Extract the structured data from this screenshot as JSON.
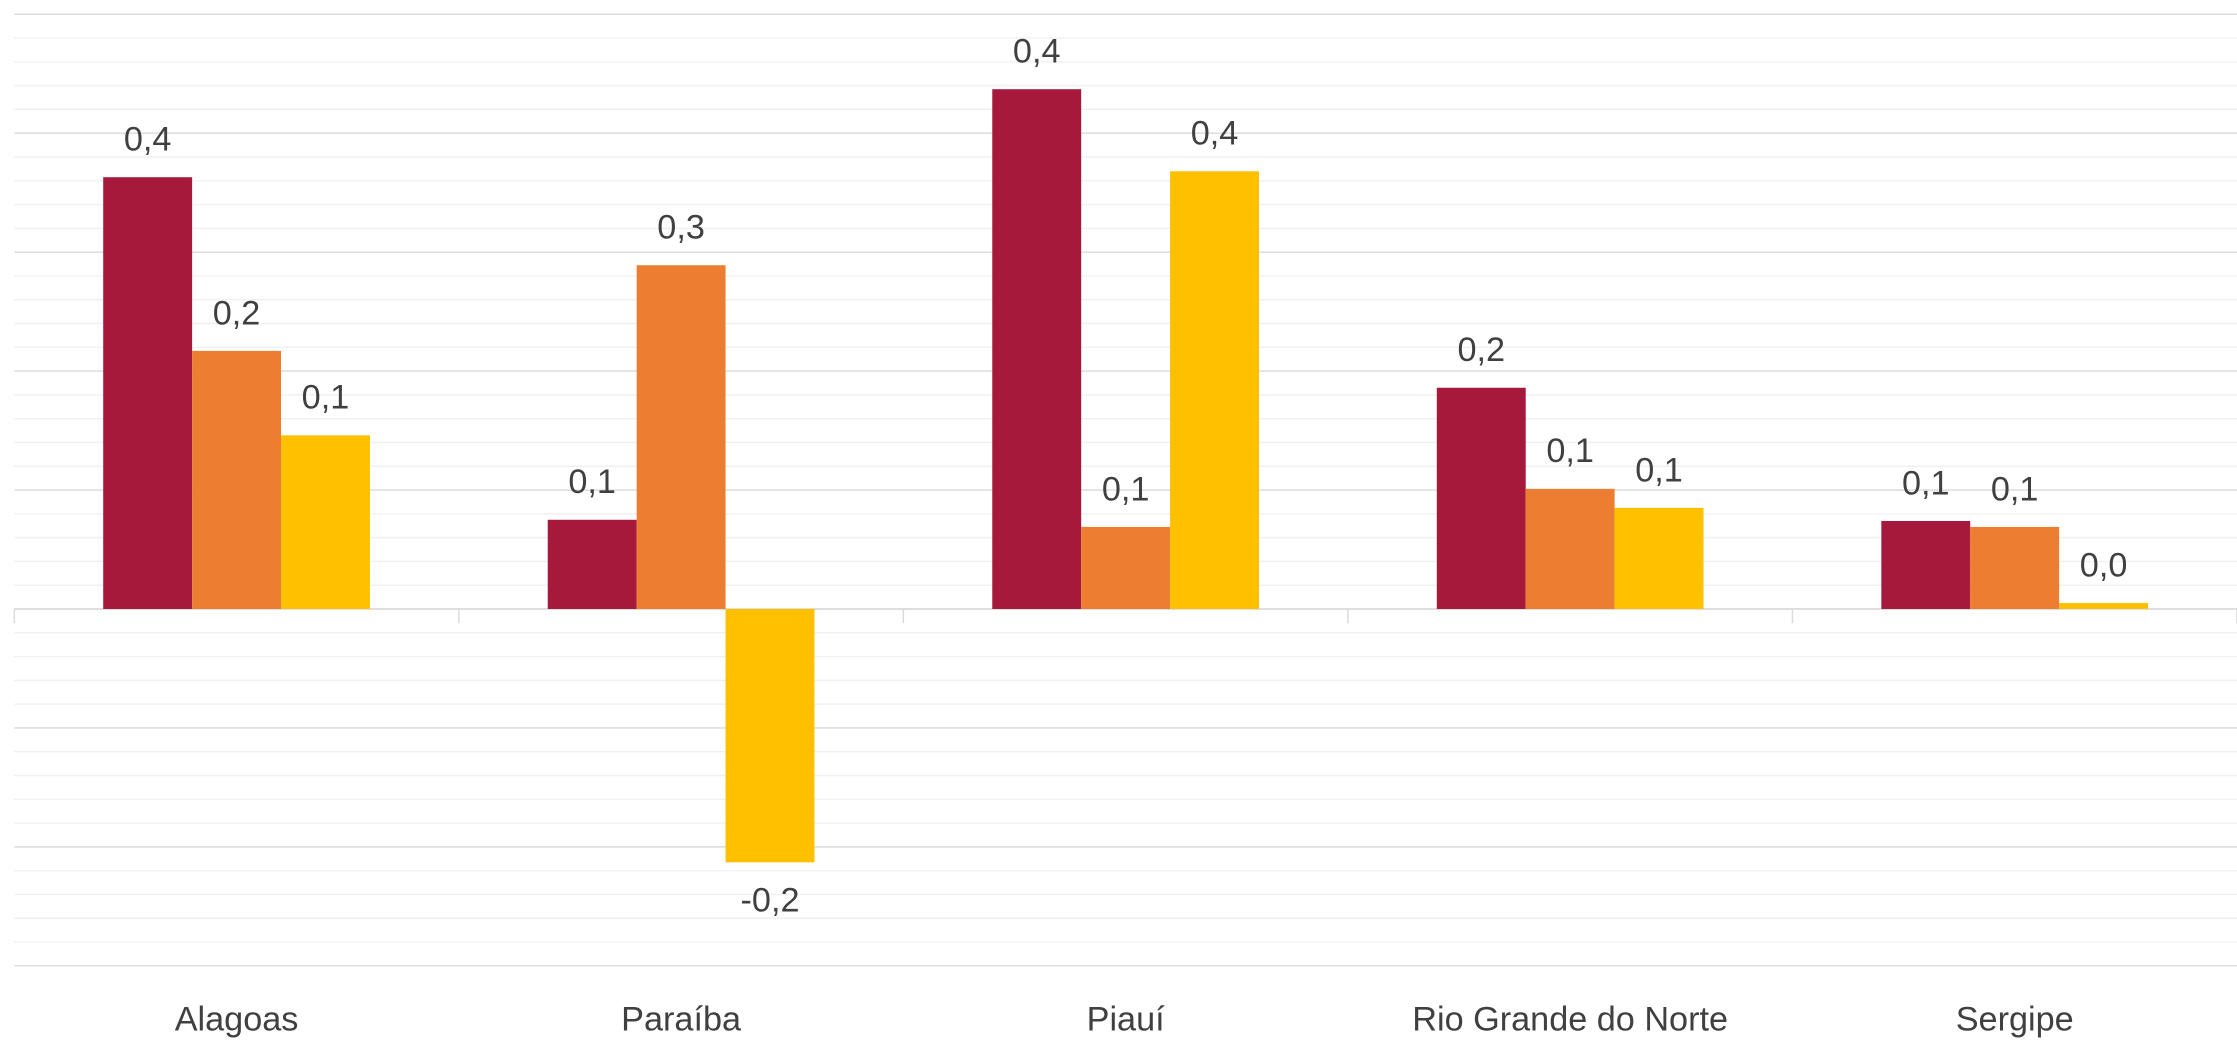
{
  "chart_data": {
    "type": "bar",
    "categories": [
      "Alagoas",
      "Paraíba",
      "Piauí",
      "Rio Grande do Norte",
      "Sergipe"
    ],
    "series": [
      {
        "color": "#a6193a",
        "values": [
          0.363,
          0.075,
          0.437,
          0.186,
          0.074
        ],
        "value_labels": [
          "0,4",
          "0,1",
          "0,4",
          "0,2",
          "0,1"
        ]
      },
      {
        "color": "#ed7d31",
        "values": [
          0.217,
          0.289,
          0.069,
          0.101,
          0.069
        ],
        "value_labels": [
          "0,2",
          "0,3",
          "0,1",
          "0,1",
          "0,1"
        ]
      },
      {
        "color": "#ffc000",
        "values": [
          0.146,
          -0.213,
          0.368,
          0.085,
          0.005
        ],
        "value_labels": [
          "0,1",
          "-0,2",
          "0,4",
          "0,1",
          "0,0"
        ]
      }
    ],
    "ylim": [
      -0.3,
      0.5
    ],
    "yticks": [
      -0.3,
      -0.2,
      -0.1,
      0,
      0.1,
      0.2,
      0.3,
      0.4,
      0.5
    ],
    "grid": true,
    "minor_grid": true
  }
}
